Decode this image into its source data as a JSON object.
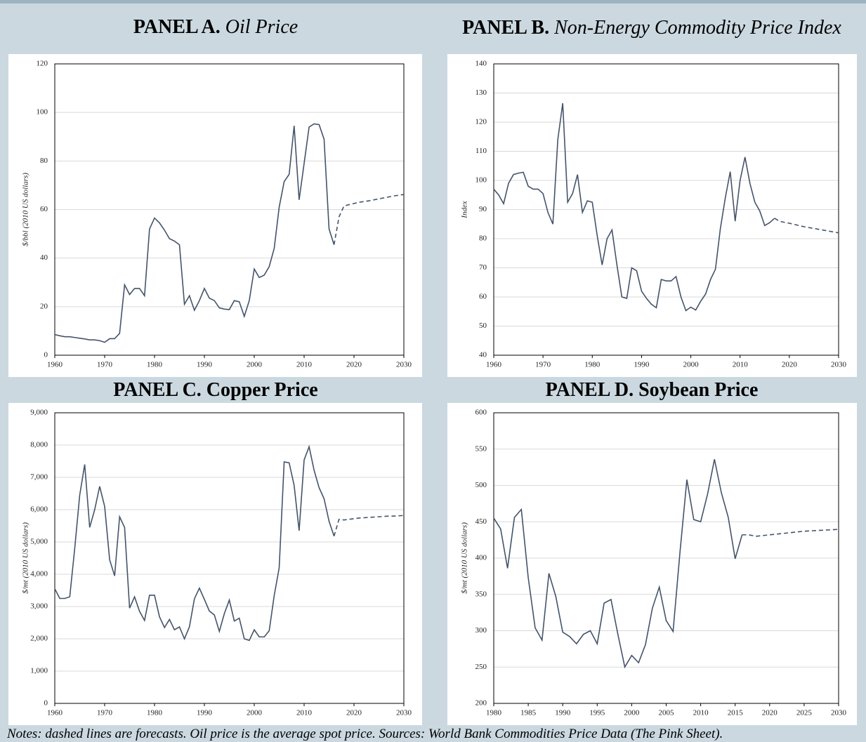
{
  "notes": "Notes: dashed lines are forecasts. Oil price is the average spot price. Sources: World Bank Commodities Price Data (The Pink Sheet).",
  "chart_data": [
    {
      "type": "line",
      "panel": "PANEL A.",
      "title": "Oil Price",
      "title_style": "italic",
      "y_label": "$/bbl (2010 US dollars)",
      "xlim": [
        1960,
        2030
      ],
      "xticks": [
        1960,
        1970,
        1980,
        1990,
        2000,
        2010,
        2020,
        2030
      ],
      "ylim": [
        0,
        120
      ],
      "yticks": [
        0,
        20,
        40,
        60,
        80,
        100,
        120
      ],
      "grid": true,
      "series": [
        {
          "color": "#44546a",
          "style": "solid",
          "x": [
            1960,
            1961,
            1962,
            1963,
            1964,
            1965,
            1966,
            1967,
            1968,
            1969,
            1970,
            1971,
            1972,
            1973,
            1974,
            1975,
            1976,
            1977,
            1978,
            1979,
            1980,
            1981,
            1982,
            1983,
            1984,
            1985,
            1986,
            1987,
            1988,
            1989,
            1990,
            1991,
            1992,
            1993,
            1994,
            1995,
            1996,
            1997,
            1998,
            1999,
            2000,
            2001,
            2002,
            2003,
            2004,
            2005,
            2006,
            2007,
            2008,
            2009,
            2010,
            2011,
            2012,
            2013,
            2014,
            2015,
            2016
          ],
          "values": [
            8.5,
            8,
            7.6,
            7.6,
            7.3,
            7,
            6.7,
            6.3,
            6.3,
            6,
            5.3,
            6.8,
            6.8,
            9,
            29,
            25,
            27.5,
            27.5,
            24.5,
            52,
            56.5,
            54.5,
            51.5,
            48,
            47,
            45.5,
            21,
            24.5,
            18.5,
            22.5,
            27.5,
            23.5,
            22.5,
            19.5,
            19,
            18.8,
            22.5,
            22,
            16,
            22.5,
            35.5,
            32,
            33,
            36.5,
            44,
            61,
            71.5,
            74.5,
            94.5,
            64,
            79,
            94,
            95.3,
            95,
            89,
            52,
            45.5
          ]
        },
        {
          "color": "#44546a",
          "style": "dashed",
          "x": [
            2016,
            2017,
            2018,
            2019,
            2020,
            2021,
            2022,
            2023,
            2024,
            2025,
            2026,
            2027,
            2028,
            2029,
            2030
          ],
          "values": [
            45.5,
            57,
            61.5,
            62,
            62.5,
            63,
            63.3,
            63.6,
            64,
            64.4,
            64.8,
            65.2,
            65.6,
            65.9,
            66.2
          ]
        }
      ]
    },
    {
      "type": "line",
      "panel": "PANEL B.",
      "title": "Non-Energy Commodity Price Index",
      "title_style": "italic",
      "y_label": "Index",
      "xlim": [
        1960,
        2030
      ],
      "xticks": [
        1960,
        1970,
        1980,
        1990,
        2000,
        2010,
        2020,
        2030
      ],
      "ylim": [
        40,
        140
      ],
      "yticks": [
        40,
        50,
        60,
        70,
        80,
        90,
        100,
        110,
        120,
        130,
        140
      ],
      "grid": true,
      "series": [
        {
          "color": "#44546a",
          "style": "solid",
          "x": [
            1960,
            1961,
            1962,
            1963,
            1964,
            1965,
            1966,
            1967,
            1968,
            1969,
            1970,
            1971,
            1972,
            1973,
            1974,
            1975,
            1976,
            1977,
            1978,
            1979,
            1980,
            1981,
            1982,
            1983,
            1984,
            1985,
            1986,
            1987,
            1988,
            1989,
            1990,
            1991,
            1992,
            1993,
            1994,
            1995,
            1996,
            1997,
            1998,
            1999,
            2000,
            2001,
            2002,
            2003,
            2004,
            2005,
            2006,
            2007,
            2008,
            2009,
            2010,
            2011,
            2012,
            2013,
            2014,
            2015,
            2016,
            2017
          ],
          "values": [
            97,
            95,
            92,
            99,
            102,
            102.5,
            102.8,
            98,
            97,
            97,
            95.5,
            89,
            85,
            114,
            126.5,
            92.5,
            95.5,
            102,
            89,
            93,
            92.5,
            81,
            71,
            80,
            83,
            71,
            60,
            59.5,
            70,
            69,
            62,
            59.5,
            57.5,
            56.3,
            66,
            65.5,
            65.5,
            67,
            60,
            55.3,
            56.5,
            55.5,
            58.5,
            61,
            66,
            69.5,
            83.5,
            94,
            103,
            86,
            100,
            108,
            99,
            92.5,
            89.5,
            84.5,
            85.5,
            87
          ]
        },
        {
          "color": "#44546a",
          "style": "dashed",
          "x": [
            2017,
            2018,
            2019,
            2020,
            2021,
            2022,
            2023,
            2024,
            2025,
            2026,
            2027,
            2028,
            2029,
            2030
          ],
          "values": [
            87,
            86,
            85.6,
            85.3,
            84.9,
            84.5,
            84.1,
            83.8,
            83.5,
            83.2,
            82.9,
            82.6,
            82.3,
            82
          ]
        }
      ]
    },
    {
      "type": "line",
      "panel": "PANEL C.",
      "title": "Copper Price",
      "title_style": "bold",
      "y_label": "$/mt (2010 US dollars)",
      "xlim": [
        1960,
        2030
      ],
      "xticks": [
        1960,
        1970,
        1980,
        1990,
        2000,
        2010,
        2020,
        2030
      ],
      "ylim": [
        0,
        9000
      ],
      "yticks": [
        0,
        {
          "value": 1000,
          "label": "1,000"
        },
        {
          "value": 2000,
          "label": "2,000"
        },
        {
          "value": 3000,
          "label": "3,000"
        },
        {
          "value": 4000,
          "label": "4,000"
        },
        {
          "value": 5000,
          "label": "5,000"
        },
        {
          "value": 6000,
          "label": "6,000"
        },
        {
          "value": 7000,
          "label": "7,000"
        },
        {
          "value": 8000,
          "label": "8,000"
        },
        {
          "value": 9000,
          "label": "9,000"
        }
      ],
      "grid": true,
      "series": [
        {
          "color": "#44546a",
          "style": "solid",
          "x": [
            1960,
            1961,
            1962,
            1963,
            1964,
            1965,
            1966,
            1967,
            1968,
            1969,
            1970,
            1971,
            1972,
            1973,
            1974,
            1975,
            1976,
            1977,
            1978,
            1979,
            1980,
            1981,
            1982,
            1983,
            1984,
            1985,
            1986,
            1987,
            1988,
            1989,
            1990,
            1991,
            1992,
            1993,
            1994,
            1995,
            1996,
            1997,
            1998,
            1999,
            2000,
            2001,
            2002,
            2003,
            2004,
            2005,
            2006,
            2007,
            2008,
            2009,
            2010,
            2011,
            2012,
            2013,
            2014,
            2015,
            2016
          ],
          "values": [
            3550,
            3250,
            3250,
            3300,
            4800,
            6450,
            7400,
            5450,
            6000,
            6720,
            6100,
            4450,
            3950,
            5780,
            5450,
            2950,
            3300,
            2850,
            2570,
            3350,
            3350,
            2680,
            2350,
            2600,
            2280,
            2370,
            2000,
            2370,
            3240,
            3570,
            3220,
            2860,
            2740,
            2230,
            2780,
            3200,
            2550,
            2640,
            2000,
            1950,
            2280,
            2060,
            2060,
            2250,
            3340,
            4200,
            7480,
            7450,
            6750,
            5350,
            7540,
            7950,
            7220,
            6680,
            6340,
            5640,
            5180
          ]
        },
        {
          "color": "#44546a",
          "style": "dashed",
          "x": [
            2016,
            2017,
            2018,
            2019,
            2020,
            2021,
            2022,
            2023,
            2024,
            2025,
            2026,
            2027,
            2028,
            2029,
            2030
          ],
          "values": [
            5180,
            5700,
            5680,
            5700,
            5720,
            5740,
            5750,
            5760,
            5770,
            5780,
            5790,
            5800,
            5800,
            5810,
            5820
          ]
        }
      ]
    },
    {
      "type": "line",
      "panel": "PANEL D.",
      "title": "Soybean Price",
      "title_style": "bold",
      "y_label": "$/mt (2010 US dollars)",
      "xlim": [
        1980,
        2030
      ],
      "xticks": [
        1980,
        1985,
        1990,
        1995,
        2000,
        2005,
        2010,
        2015,
        2020,
        2025,
        2030
      ],
      "ylim": [
        200,
        600
      ],
      "yticks": [
        200,
        250,
        300,
        350,
        400,
        450,
        500,
        550,
        600
      ],
      "grid": true,
      "series": [
        {
          "color": "#44546a",
          "style": "solid",
          "x": [
            1980,
            1981,
            1982,
            1983,
            1984,
            1985,
            1986,
            1987,
            1988,
            1989,
            1990,
            1991,
            1992,
            1993,
            1994,
            1995,
            1996,
            1997,
            1998,
            1999,
            2000,
            2001,
            2002,
            2003,
            2004,
            2005,
            2006,
            2007,
            2008,
            2009,
            2010,
            2011,
            2012,
            2013,
            2014,
            2015,
            2016
          ],
          "values": [
            455,
            440,
            386,
            456,
            467,
            373,
            304,
            287,
            379,
            347,
            298,
            292,
            282,
            295,
            300,
            282,
            338,
            343,
            295,
            250,
            266,
            256,
            281,
            331,
            360,
            314,
            299,
            408,
            508,
            453,
            450,
            488,
            536,
            490,
            456,
            399,
            432
          ]
        },
        {
          "color": "#44546a",
          "style": "dashed",
          "x": [
            2016,
            2017,
            2018,
            2019,
            2020,
            2021,
            2022,
            2023,
            2024,
            2025,
            2026,
            2027,
            2028,
            2029,
            2030
          ],
          "values": [
            432,
            432,
            430,
            431,
            432,
            433,
            434,
            435,
            436,
            437,
            437.5,
            438,
            438.5,
            439,
            439.5
          ]
        }
      ]
    }
  ]
}
